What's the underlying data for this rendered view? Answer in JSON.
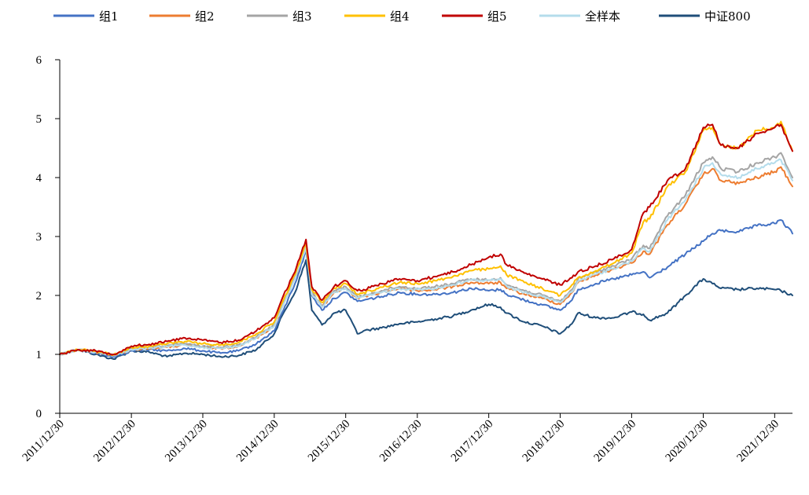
{
  "chart_data": {
    "type": "line",
    "title": "",
    "xlabel": "",
    "ylabel": "",
    "ylim": [
      0,
      6
    ],
    "yticks": [
      0,
      1,
      2,
      3,
      4,
      5,
      6
    ],
    "xlim": [
      "2011-12-30",
      "2022-03-31"
    ],
    "xtick_labels": [
      "2011/12/30",
      "2012/12/30",
      "2013/12/30",
      "2014/12/30",
      "2015/12/30",
      "2016/12/30",
      "2017/12/30",
      "2018/12/30",
      "2019/12/30",
      "2020/12/30",
      "2021/12/30"
    ],
    "grid": false,
    "legend_position": "top",
    "x": [
      "2011-12-30",
      "2012-03-31",
      "2012-06-30",
      "2012-09-30",
      "2012-12-30",
      "2013-03-31",
      "2013-06-30",
      "2013-09-30",
      "2013-12-30",
      "2014-03-31",
      "2014-06-30",
      "2014-09-30",
      "2014-12-30",
      "2015-02-15",
      "2015-04-15",
      "2015-06-10",
      "2015-07-10",
      "2015-08-31",
      "2015-10-31",
      "2015-12-30",
      "2016-02-28",
      "2016-03-31",
      "2016-06-30",
      "2016-09-30",
      "2016-12-30",
      "2017-03-31",
      "2017-06-30",
      "2017-09-30",
      "2017-12-30",
      "2018-02-28",
      "2018-03-31",
      "2018-06-30",
      "2018-09-30",
      "2018-12-30",
      "2019-02-28",
      "2019-03-31",
      "2019-06-30",
      "2019-09-30",
      "2019-12-30",
      "2020-02-28",
      "2020-03-31",
      "2020-06-30",
      "2020-09-30",
      "2020-12-30",
      "2021-02-15",
      "2021-03-31",
      "2021-06-30",
      "2021-09-30",
      "2021-12-30",
      "2022-01-31",
      "2022-03-31"
    ],
    "series": [
      {
        "name": "组1",
        "color": "#4472C4",
        "values": [
          1.0,
          1.08,
          1.02,
          0.96,
          1.06,
          1.08,
          1.06,
          1.1,
          1.06,
          1.02,
          1.06,
          1.18,
          1.4,
          1.75,
          2.2,
          2.75,
          2.0,
          1.75,
          1.95,
          2.05,
          1.9,
          1.92,
          1.98,
          2.05,
          2.02,
          2.02,
          2.05,
          2.12,
          2.08,
          2.1,
          2.02,
          1.92,
          1.84,
          1.75,
          1.92,
          2.1,
          2.2,
          2.28,
          2.35,
          2.4,
          2.3,
          2.48,
          2.7,
          2.92,
          3.05,
          3.1,
          3.08,
          3.18,
          3.22,
          3.28,
          3.05
        ]
      },
      {
        "name": "组2",
        "color": "#ED7D31",
        "values": [
          1.0,
          1.08,
          1.04,
          0.98,
          1.08,
          1.1,
          1.12,
          1.16,
          1.12,
          1.1,
          1.14,
          1.28,
          1.48,
          1.85,
          2.3,
          2.85,
          2.05,
          1.8,
          2.05,
          2.12,
          1.95,
          1.98,
          2.05,
          2.12,
          2.08,
          2.1,
          2.15,
          2.22,
          2.2,
          2.22,
          2.12,
          2.02,
          1.95,
          1.85,
          2.05,
          2.22,
          2.35,
          2.45,
          2.55,
          2.75,
          2.7,
          3.2,
          3.55,
          4.05,
          4.15,
          3.95,
          3.9,
          4.0,
          4.1,
          4.18,
          3.85
        ]
      },
      {
        "name": "组3",
        "color": "#A5A5A5",
        "values": [
          1.0,
          1.08,
          1.05,
          0.98,
          1.1,
          1.12,
          1.15,
          1.18,
          1.14,
          1.12,
          1.16,
          1.3,
          1.5,
          1.88,
          2.3,
          2.85,
          2.05,
          1.82,
          2.08,
          2.15,
          1.98,
          2.0,
          2.08,
          2.15,
          2.12,
          2.15,
          2.2,
          2.28,
          2.26,
          2.3,
          2.18,
          2.08,
          2.0,
          1.9,
          2.1,
          2.28,
          2.4,
          2.5,
          2.62,
          2.85,
          2.8,
          3.35,
          3.7,
          4.25,
          4.35,
          4.15,
          4.1,
          4.25,
          4.35,
          4.42,
          4.0
        ]
      },
      {
        "name": "组4",
        "color": "#FFC000",
        "values": [
          1.0,
          1.08,
          1.06,
          0.99,
          1.12,
          1.14,
          1.18,
          1.22,
          1.18,
          1.16,
          1.2,
          1.35,
          1.55,
          1.92,
          2.35,
          2.88,
          2.1,
          1.88,
          2.12,
          2.2,
          2.02,
          2.05,
          2.14,
          2.22,
          2.2,
          2.25,
          2.32,
          2.42,
          2.45,
          2.5,
          2.35,
          2.22,
          2.12,
          2.0,
          2.18,
          2.3,
          2.42,
          2.55,
          2.72,
          3.25,
          3.3,
          3.85,
          4.1,
          4.8,
          4.85,
          4.55,
          4.5,
          4.8,
          4.85,
          4.95,
          4.45
        ]
      },
      {
        "name": "组5",
        "color": "#C00000",
        "values": [
          1.0,
          1.08,
          1.06,
          1.0,
          1.14,
          1.17,
          1.22,
          1.28,
          1.24,
          1.2,
          1.24,
          1.4,
          1.62,
          2.0,
          2.4,
          2.95,
          2.15,
          1.92,
          2.15,
          2.25,
          2.08,
          2.1,
          2.2,
          2.28,
          2.25,
          2.32,
          2.4,
          2.52,
          2.65,
          2.7,
          2.52,
          2.38,
          2.28,
          2.18,
          2.3,
          2.4,
          2.5,
          2.62,
          2.78,
          3.4,
          3.5,
          3.95,
          4.15,
          4.85,
          4.9,
          4.55,
          4.5,
          4.75,
          4.85,
          4.9,
          4.45
        ]
      },
      {
        "name": "全样本",
        "color": "#B4DCEB",
        "values": [
          1.0,
          1.08,
          1.04,
          0.98,
          1.08,
          1.1,
          1.13,
          1.16,
          1.12,
          1.1,
          1.14,
          1.28,
          1.48,
          1.85,
          2.28,
          2.82,
          2.02,
          1.8,
          2.05,
          2.12,
          1.95,
          1.98,
          2.05,
          2.12,
          2.1,
          2.12,
          2.18,
          2.26,
          2.26,
          2.28,
          2.16,
          2.05,
          1.98,
          1.88,
          2.06,
          2.24,
          2.36,
          2.46,
          2.58,
          2.8,
          2.74,
          3.28,
          3.62,
          4.15,
          4.25,
          4.05,
          4.0,
          4.15,
          4.25,
          4.3,
          3.95
        ]
      },
      {
        "name": "中证800",
        "color": "#1F4E79",
        "values": [
          1.0,
          1.08,
          1.0,
          0.92,
          1.06,
          1.04,
          0.96,
          1.02,
          1.0,
          0.96,
          0.98,
          1.08,
          1.35,
          1.7,
          2.05,
          2.6,
          1.75,
          1.5,
          1.7,
          1.75,
          1.35,
          1.4,
          1.45,
          1.52,
          1.55,
          1.6,
          1.65,
          1.75,
          1.85,
          1.8,
          1.7,
          1.55,
          1.48,
          1.35,
          1.52,
          1.7,
          1.62,
          1.62,
          1.72,
          1.68,
          1.58,
          1.7,
          2.0,
          2.28,
          2.2,
          2.12,
          2.1,
          2.12,
          2.1,
          2.08,
          2.0
        ]
      }
    ]
  }
}
